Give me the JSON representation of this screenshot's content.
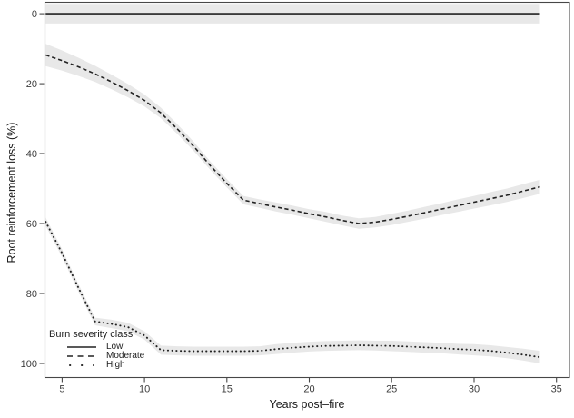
{
  "legend": {
    "title": "Burn severity class",
    "entries": [
      {
        "label": "Low",
        "linetype": "solid"
      },
      {
        "label": "Moderate",
        "linetype": "dashed"
      },
      {
        "label": "High",
        "linetype": "dotted"
      }
    ]
  },
  "chart_data": {
    "type": "line",
    "title": "",
    "xlabel": "Years post–fire",
    "ylabel": "Root reinforcement loss (%)",
    "x_ticks": [
      5,
      10,
      15,
      20,
      25,
      30,
      35
    ],
    "y_ticks": [
      0,
      20,
      40,
      60,
      80,
      100
    ],
    "xlim": [
      3.93,
      35.79
    ],
    "ylim": [
      -3.4,
      103.9
    ],
    "y_axis_reversed": true,
    "grid": "off",
    "legend_position": "bottom-left-inside",
    "ribbon_color": "#e8e8e8",
    "line_color": "#222222",
    "x": [
      4,
      5,
      6,
      7,
      8,
      9,
      10,
      11,
      12,
      13,
      14,
      15,
      16,
      17,
      18,
      19,
      20,
      21,
      22,
      23,
      24,
      25,
      26,
      27,
      28,
      29,
      30,
      31,
      32,
      33,
      34
    ],
    "series": [
      {
        "name": "Low",
        "linetype": "solid",
        "values": [
          0,
          0,
          0,
          0,
          0,
          0,
          0,
          0,
          0,
          0,
          0,
          0,
          0,
          0,
          0,
          0,
          0,
          0,
          0,
          0,
          0,
          0,
          0,
          0,
          0,
          0,
          0,
          0,
          0,
          0,
          0
        ],
        "ci": 2.8
      },
      {
        "name": "Moderate",
        "linetype": "dashed",
        "values": [
          11.8,
          13.4,
          15.2,
          17.2,
          19.5,
          22.0,
          24.8,
          28.4,
          33.0,
          38.0,
          43.5,
          48.5,
          53.3,
          54.3,
          55.3,
          56.2,
          57.2,
          58.1,
          59.1,
          60.0,
          59.6,
          58.8,
          57.9,
          56.9,
          55.9,
          54.9,
          53.9,
          52.9,
          51.9,
          50.7,
          49.5
        ],
        "ci": [
          3.2,
          2.9,
          2.6,
          2.3,
          2.1,
          1.9,
          1.7,
          1.5,
          1.4,
          1.3,
          1.2,
          1.2,
          1.2,
          1.2,
          1.3,
          1.3,
          1.3,
          1.4,
          1.4,
          1.5,
          1.5,
          1.6,
          1.6,
          1.7,
          1.7,
          1.8,
          1.8,
          1.9,
          1.9,
          2.0,
          2.0
        ]
      },
      {
        "name": "High",
        "linetype": "dotted",
        "values": [
          59.5,
          68.5,
          78.5,
          88.0,
          88.7,
          89.6,
          92.0,
          96.2,
          96.4,
          96.5,
          96.5,
          96.5,
          96.5,
          96.4,
          95.9,
          95.5,
          95.2,
          95.0,
          94.9,
          94.8,
          94.9,
          95.0,
          95.2,
          95.4,
          95.6,
          95.9,
          96.1,
          96.4,
          96.9,
          97.5,
          98.2
        ],
        "ci": [
          1.2,
          1.1,
          1.1,
          1.1,
          1.2,
          1.2,
          1.2,
          1.3,
          1.3,
          1.3,
          1.3,
          1.3,
          1.3,
          1.3,
          1.4,
          1.4,
          1.4,
          1.4,
          1.4,
          1.4,
          1.4,
          1.5,
          1.5,
          1.5,
          1.5,
          1.5,
          1.6,
          1.6,
          1.6,
          1.7,
          1.8
        ]
      }
    ]
  }
}
